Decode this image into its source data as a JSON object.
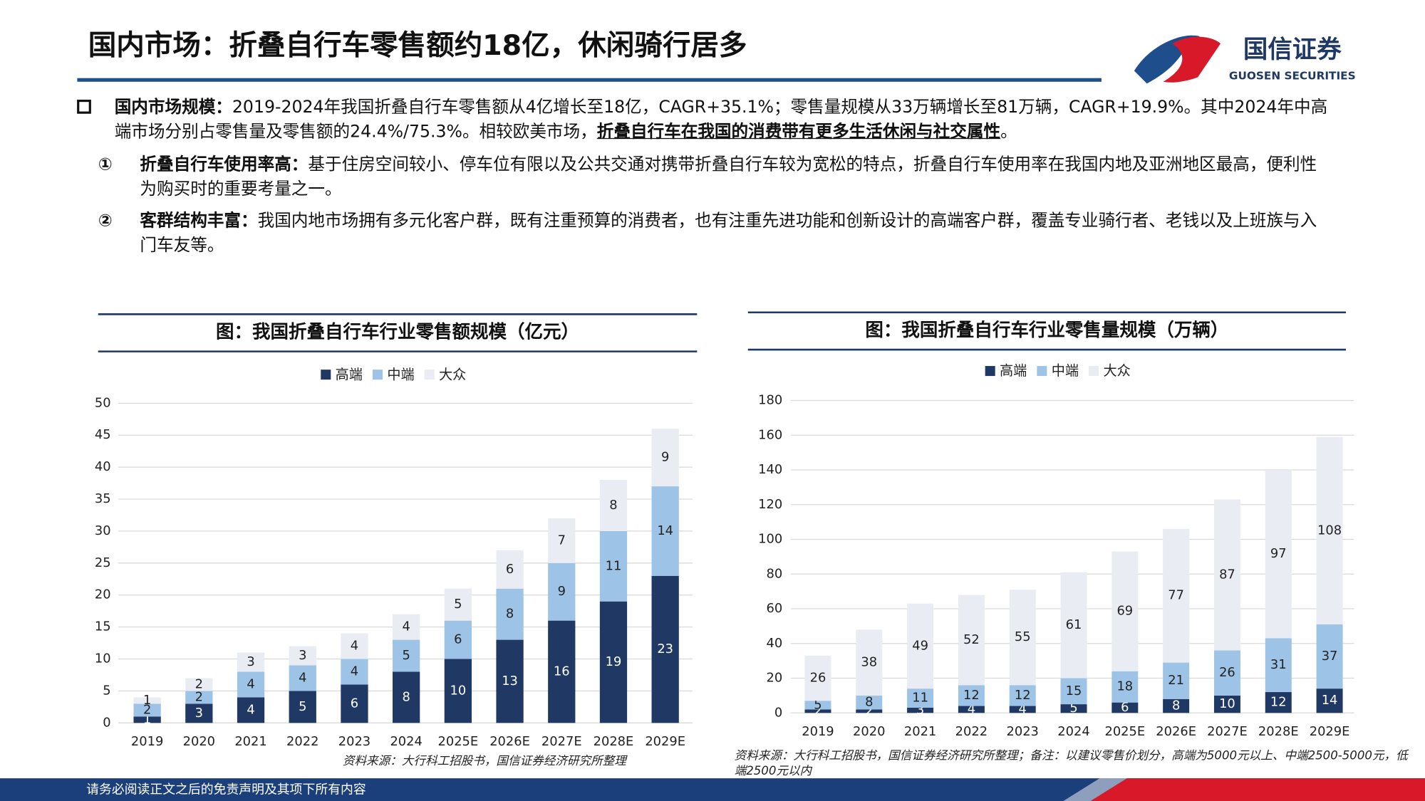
{
  "header": {
    "title": "国内市场：折叠自行车零售额约18亿，休闲骑行居多",
    "logo_cn": "国信证券",
    "logo_en": "GUOSEN SECURITIES"
  },
  "bullets": [
    {
      "label": "国内市场规模：",
      "text": "2019-2024年我国折叠自行车零售额从4亿增长至18亿，CAGR+35.1%；零售量规模从33万辆增长至81万辆，CAGR+19.9%。其中2024年中高端市场分别占零售量及零售额的24.4%/75.3%。相较欧美市场，",
      "emphasis": "折叠自行车在我国的消费带有更多生活休闲与社交属性",
      "tail": "。"
    },
    {
      "marker": "①",
      "label": "折叠自行车使用率高：",
      "text": "基于住房空间较小、停车位有限以及公共交通对携带折叠自行车较为宽松的特点，折叠自行车使用率在我国内地及亚洲地区最高，便利性为购买时的重要考量之一。"
    },
    {
      "marker": "②",
      "label": "客群结构丰富：",
      "text": "我国内地市场拥有多元化客户群，既有注重预算的消费者，也有注重先进功能和创新设计的高端客户群，覆盖专业骑行者、老钱以及上班族与入门车友等。"
    }
  ],
  "footer": "请务必阅读正文之后的免责声明及其项下所有内容",
  "chart_data": [
    {
      "type": "bar",
      "stacked": true,
      "title": "图：我国折叠自行车行业零售额规模（亿元）",
      "source": "资料来源：大行科工招股书，国信证券经济研究所整理",
      "categories": [
        "2019",
        "2020",
        "2021",
        "2022",
        "2023",
        "2024",
        "2025E",
        "2026E",
        "2027E",
        "2028E",
        "2029E"
      ],
      "series": [
        {
          "name": "高端",
          "color": "#1f3864",
          "values": [
            1,
            3,
            4,
            5,
            6,
            8,
            10,
            13,
            16,
            19,
            23
          ]
        },
        {
          "name": "中端",
          "color": "#9dc3e6",
          "values": [
            2,
            2,
            4,
            4,
            4,
            5,
            6,
            8,
            9,
            11,
            14
          ]
        },
        {
          "name": "大众",
          "color": "#e9ecf3",
          "values": [
            1,
            2,
            3,
            3,
            4,
            4,
            5,
            6,
            7,
            8,
            9
          ]
        }
      ],
      "ylim": [
        0,
        50
      ],
      "yticks": [
        0,
        5,
        10,
        15,
        20,
        25,
        30,
        35,
        40,
        45,
        50
      ],
      "grid": true
    },
    {
      "type": "bar",
      "stacked": true,
      "title": "图：我国折叠自行车行业零售量规模（万辆）",
      "source": "资料来源：大行科工招股书，国信证券经济研究所整理；备注：以建议零售价划分，高端为5000元以上、中端2500-5000元，低端2500元以内",
      "categories": [
        "2019",
        "2020",
        "2021",
        "2022",
        "2023",
        "2024",
        "2025E",
        "2026E",
        "2027E",
        "2028E",
        "2029E"
      ],
      "series": [
        {
          "name": "高端",
          "color": "#1f3864",
          "values": [
            2,
            2,
            3,
            4,
            4,
            5,
            6,
            8,
            10,
            12,
            14
          ]
        },
        {
          "name": "中端",
          "color": "#9dc3e6",
          "values": [
            5,
            8,
            11,
            12,
            12,
            15,
            18,
            21,
            26,
            31,
            37
          ]
        },
        {
          "name": "大众",
          "color": "#e9ecf3",
          "values": [
            26,
            38,
            49,
            52,
            55,
            61,
            69,
            77,
            87,
            97,
            108
          ]
        }
      ],
      "ylim": [
        0,
        180
      ],
      "yticks": [
        0,
        20,
        40,
        60,
        80,
        100,
        120,
        140,
        160,
        180
      ],
      "grid": true
    }
  ]
}
